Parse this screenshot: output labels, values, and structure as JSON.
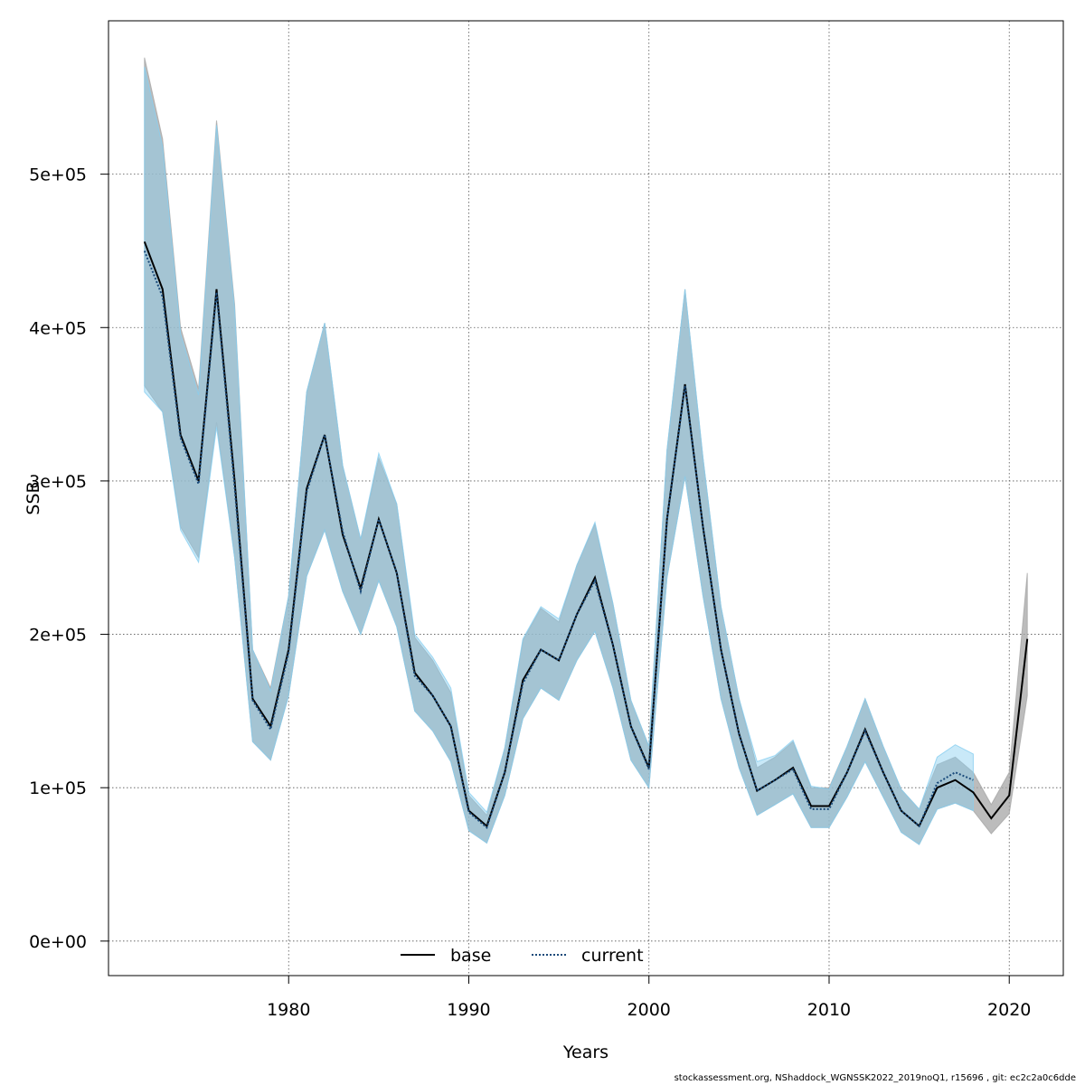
{
  "chart_data": {
    "type": "area",
    "xlabel": "Years",
    "ylabel": "SSB",
    "xlim": [
      1970.0,
      2023.0
    ],
    "ylim": [
      -22500,
      600000
    ],
    "x_ticks": [
      1980,
      1990,
      2000,
      2010,
      2020
    ],
    "x_tick_labels": [
      "1980",
      "1990",
      "2000",
      "2010",
      "2020"
    ],
    "y_ticks": [
      0,
      100000,
      200000,
      300000,
      400000,
      500000
    ],
    "y_tick_labels": [
      "0e+00",
      "1e+05",
      "2e+05",
      "3e+05",
      "4e+05",
      "5e+05"
    ],
    "grid": true,
    "legend_position": "bottom",
    "series": [
      {
        "name": "base",
        "color": "#000000",
        "band_color": "#a6a6a6",
        "line_style": "solid",
        "x": [
          1972,
          1973,
          1974,
          1975,
          1976,
          1977,
          1978,
          1979,
          1980,
          1981,
          1982,
          1983,
          1984,
          1985,
          1986,
          1987,
          1988,
          1989,
          1990,
          1991,
          1992,
          1993,
          1994,
          1995,
          1996,
          1997,
          1998,
          1999,
          2000,
          2001,
          2002,
          2003,
          2004,
          2005,
          2006,
          2007,
          2008,
          2009,
          2010,
          2011,
          2012,
          2013,
          2014,
          2015,
          2016,
          2017,
          2018,
          2019,
          2020,
          2021
        ],
        "values": [
          456000,
          425000,
          330000,
          300000,
          425000,
          300000,
          158000,
          140000,
          190000,
          295000,
          330000,
          265000,
          230000,
          275000,
          240000,
          175000,
          160000,
          140000,
          85000,
          75000,
          110000,
          170000,
          190000,
          183000,
          213000,
          237000,
          193000,
          140000,
          113000,
          275000,
          363000,
          270000,
          190000,
          135000,
          98000,
          105000,
          113000,
          88000,
          88000,
          110000,
          138000,
          110000,
          85000,
          75000,
          100000,
          105000,
          97000,
          80000,
          95000,
          197000
        ],
        "lower": [
          362000,
          345000,
          270000,
          250000,
          338000,
          250000,
          130000,
          118000,
          160000,
          238000,
          268000,
          228000,
          200000,
          235000,
          205000,
          150000,
          137000,
          117000,
          72000,
          64000,
          95000,
          145000,
          165000,
          157000,
          183000,
          202000,
          165000,
          118000,
          100000,
          237000,
          303000,
          225000,
          158000,
          113000,
          82000,
          89000,
          96000,
          74000,
          74000,
          94000,
          117000,
          94000,
          71000,
          63000,
          86000,
          90000,
          85000,
          70000,
          83000,
          160000
        ],
        "upper": [
          576000,
          523000,
          400000,
          360000,
          535000,
          415000,
          190000,
          165000,
          225000,
          358000,
          403000,
          310000,
          262000,
          315000,
          285000,
          198000,
          183000,
          162000,
          95000,
          82000,
          126000,
          196000,
          217000,
          208000,
          245000,
          272000,
          220000,
          157000,
          127000,
          320000,
          425000,
          315000,
          218000,
          158000,
          113000,
          120000,
          130000,
          100000,
          100000,
          127000,
          158000,
          127000,
          99000,
          86000,
          115000,
          120000,
          110000,
          89000,
          110000,
          240000
        ]
      },
      {
        "name": "current",
        "color": "#1a4a7a",
        "band_color": "#87cef0",
        "line_style": "dotted",
        "x": [
          1972,
          1973,
          1974,
          1975,
          1976,
          1977,
          1978,
          1979,
          1980,
          1981,
          1982,
          1983,
          1984,
          1985,
          1986,
          1987,
          1988,
          1989,
          1990,
          1991,
          1992,
          1993,
          1994,
          1995,
          1996,
          1997,
          1998,
          1999,
          2000,
          2001,
          2002,
          2003,
          2004,
          2005,
          2006,
          2007,
          2008,
          2009,
          2010,
          2011,
          2012,
          2013,
          2014,
          2015,
          2016,
          2017,
          2018
        ],
        "values": [
          450000,
          420000,
          328000,
          298000,
          423000,
          296000,
          157000,
          138000,
          188000,
          293000,
          330000,
          267000,
          228000,
          275000,
          240000,
          173000,
          160000,
          140000,
          84000,
          74000,
          110000,
          168000,
          190000,
          183000,
          213000,
          235000,
          193000,
          140000,
          112000,
          275000,
          362000,
          270000,
          190000,
          135000,
          98000,
          105000,
          112000,
          86000,
          86000,
          110000,
          137000,
          110000,
          85000,
          75000,
          103000,
          110000,
          105000
        ],
        "lower": [
          358000,
          345000,
          268000,
          247000,
          335000,
          250000,
          130000,
          118000,
          160000,
          238000,
          268000,
          228000,
          200000,
          235000,
          205000,
          150000,
          137000,
          117000,
          72000,
          64000,
          95000,
          145000,
          165000,
          157000,
          183000,
          202000,
          165000,
          118000,
          100000,
          237000,
          303000,
          225000,
          158000,
          113000,
          82000,
          89000,
          96000,
          74000,
          74000,
          94000,
          117000,
          94000,
          71000,
          63000,
          86000,
          90000,
          85000
        ],
        "upper": [
          570000,
          518000,
          396000,
          356000,
          532000,
          412000,
          190000,
          163000,
          225000,
          358000,
          403000,
          310000,
          262000,
          318000,
          285000,
          200000,
          185000,
          165000,
          97000,
          84000,
          126000,
          197000,
          218000,
          210000,
          245000,
          273000,
          220000,
          157000,
          127000,
          320000,
          425000,
          315000,
          218000,
          158000,
          117000,
          121000,
          131000,
          101000,
          99000,
          127000,
          158000,
          127000,
          99000,
          86000,
          120000,
          128000,
          122000
        ]
      }
    ]
  },
  "footer_text": "stockassessment.org, NShaddock_WGNSSK2022_2019noQ1, r15696 , git: ec2c2a0c6dde"
}
